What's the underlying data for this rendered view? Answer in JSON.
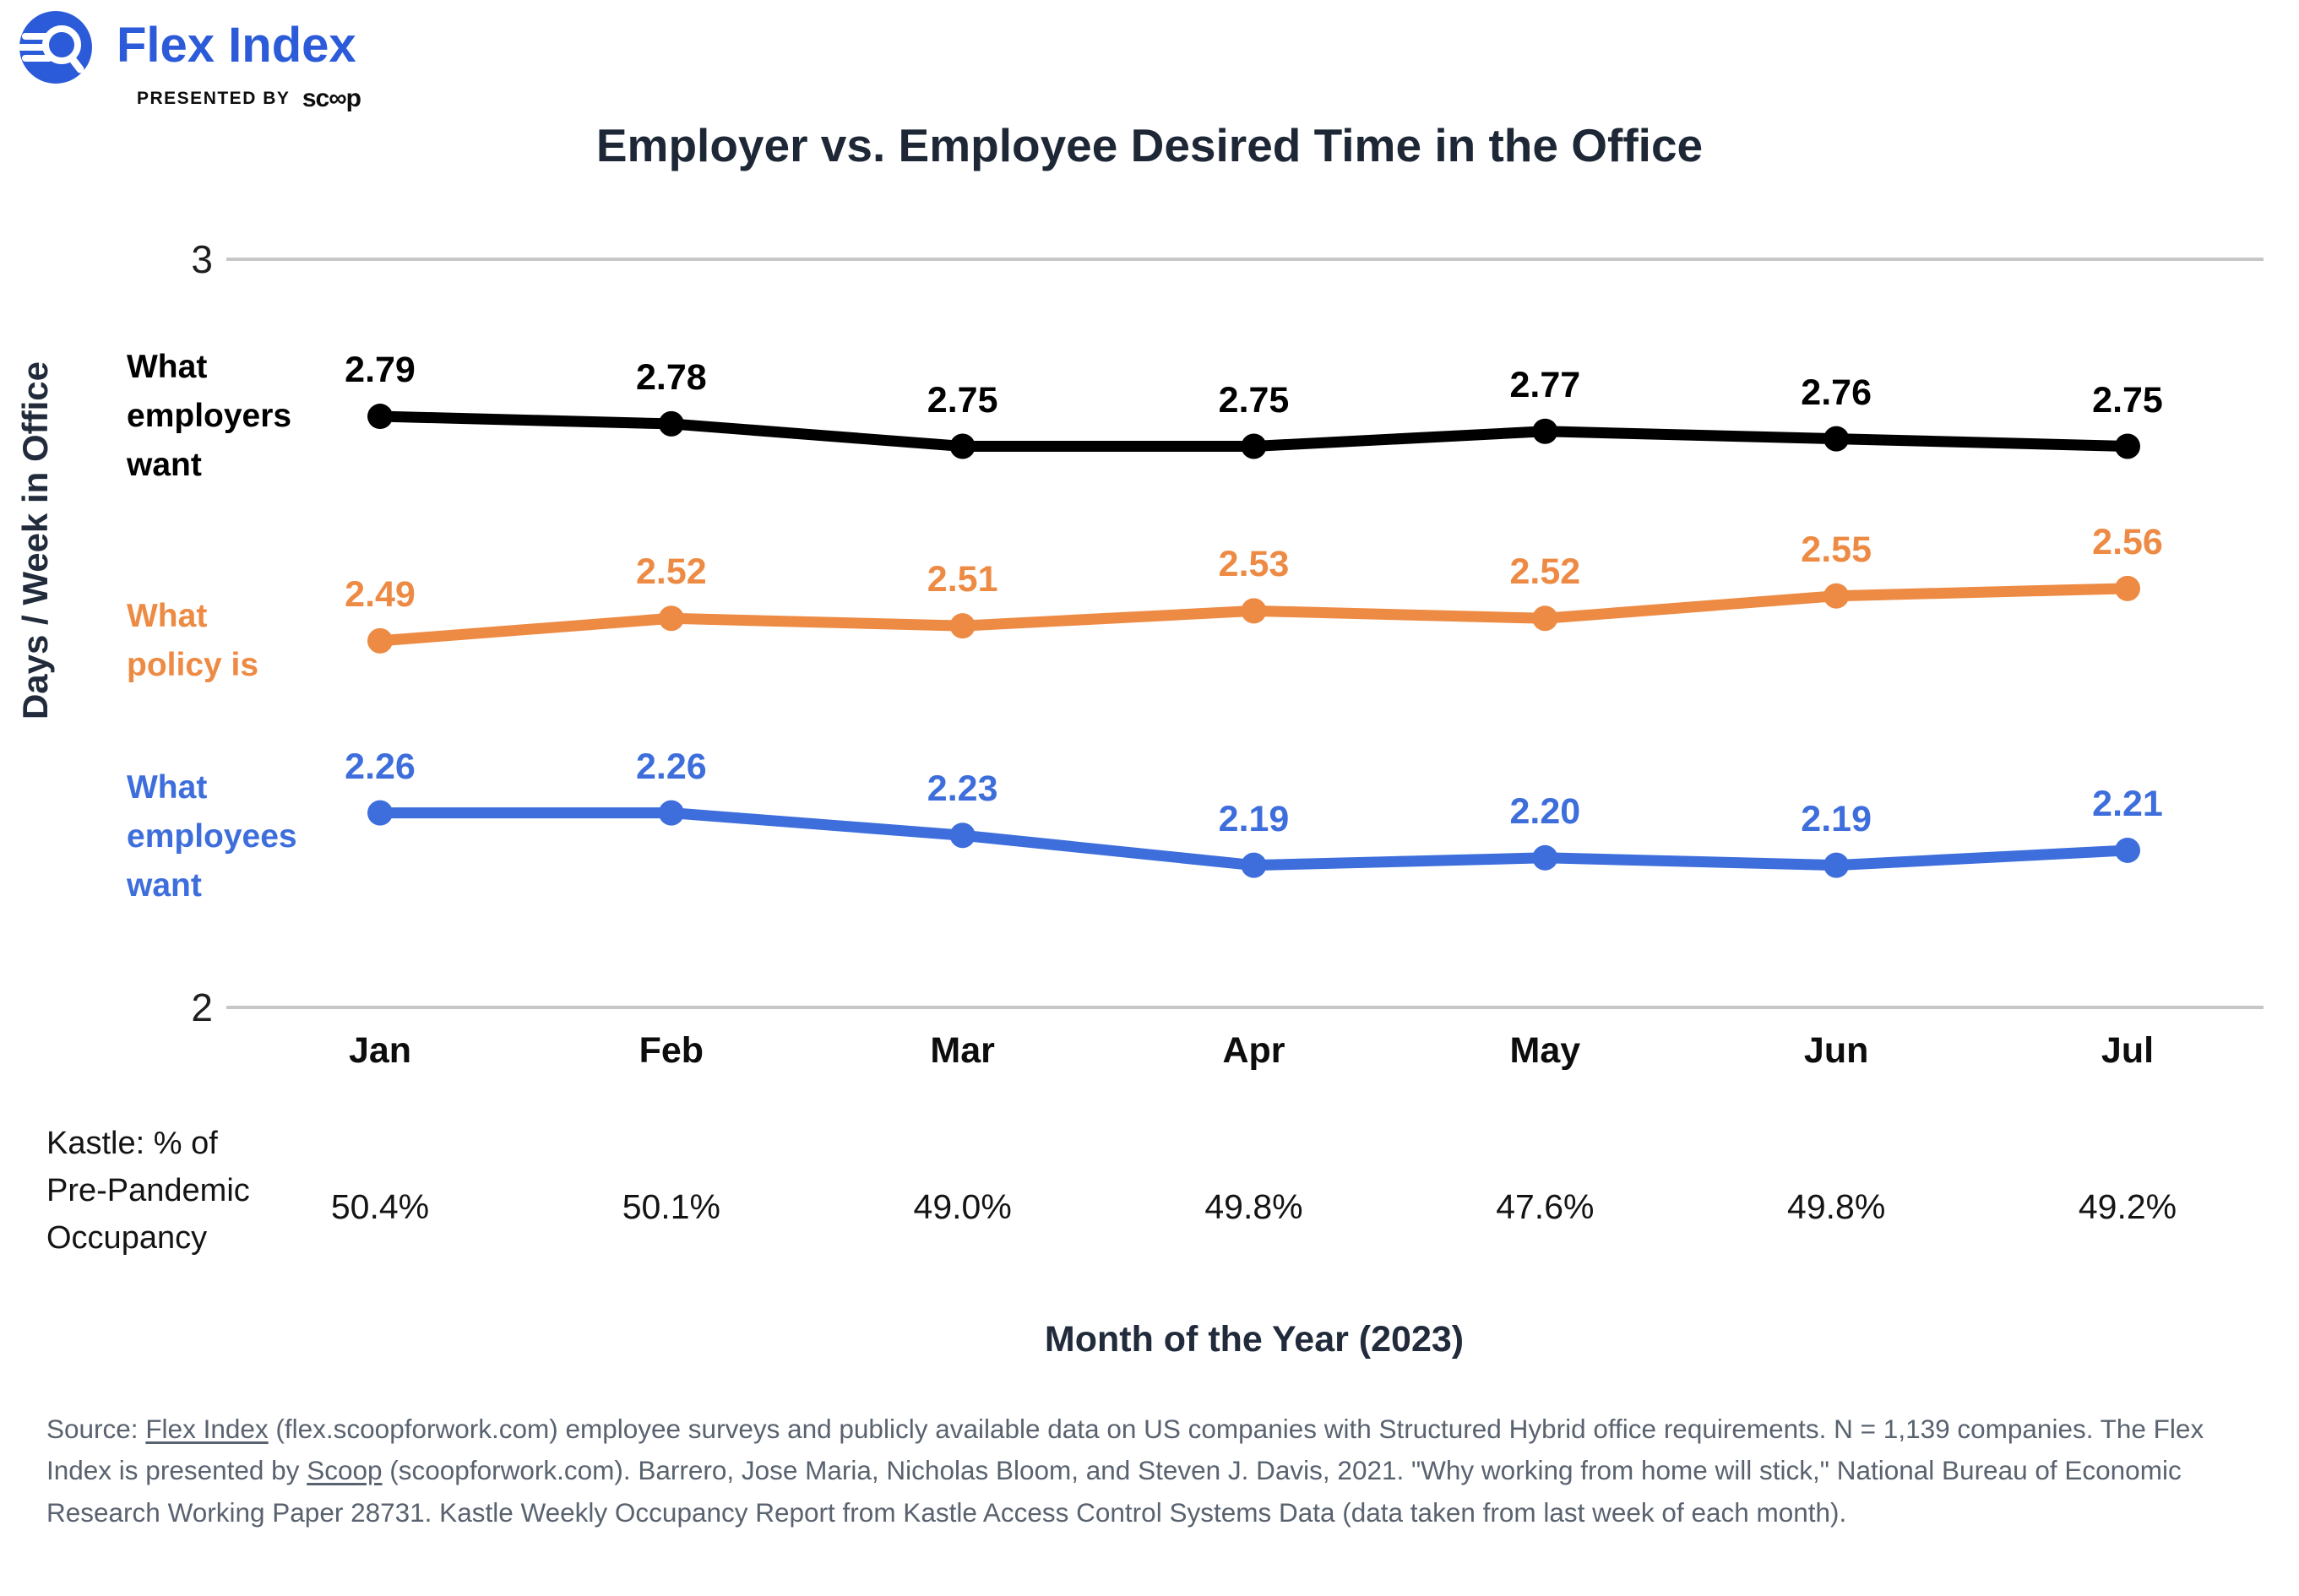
{
  "header": {
    "brand": "Flex Index",
    "presented_by": "PRESENTED BY",
    "scoop_wordmark": "sc∞p",
    "brand_color": "#2C5BD9"
  },
  "chart_data": {
    "type": "line",
    "title": "Employer vs. Employee Desired Time in the Office",
    "xlabel": "Month of the Year (2023)",
    "ylabel": "Days / Week in Office",
    "ylim": [
      2,
      3
    ],
    "yticks": [
      3,
      2
    ],
    "grid": "horizontal-ticks-only",
    "legend_position": "left-inline",
    "categories": [
      "Jan",
      "Feb",
      "Mar",
      "Apr",
      "May",
      "Jun",
      "Jul"
    ],
    "series": [
      {
        "name": "What employers want",
        "label_lines": [
          "What",
          "employers",
          "want"
        ],
        "color": "#000000",
        "values": [
          2.79,
          2.78,
          2.75,
          2.75,
          2.77,
          2.76,
          2.75
        ]
      },
      {
        "name": "What policy is",
        "label_lines": [
          "What",
          "policy is"
        ],
        "color": "#ED8B45",
        "values": [
          2.49,
          2.52,
          2.51,
          2.53,
          2.52,
          2.55,
          2.56
        ]
      },
      {
        "name": "What employees want",
        "label_lines": [
          "What",
          "employees",
          "want"
        ],
        "color": "#3D6EDB",
        "values": [
          2.26,
          2.26,
          2.23,
          2.19,
          2.2,
          2.19,
          2.21
        ]
      }
    ],
    "annotation_row": {
      "label_lines": [
        "Kastle: % of",
        "Pre-Pandemic",
        "Occupancy"
      ],
      "values": [
        "50.4%",
        "50.1%",
        "49.0%",
        "49.8%",
        "47.6%",
        "49.8%",
        "49.2%"
      ]
    }
  },
  "footnote": {
    "parts": [
      {
        "text": "Source: "
      },
      {
        "text": "Flex Index",
        "underline": true
      },
      {
        "text": " (flex.scoopforwork.com) employee surveys and publicly available data on US companies with Structured Hybrid office requirements. N = 1,139 companies. The Flex Index is presented by "
      },
      {
        "text": "Scoop",
        "underline": true
      },
      {
        "text": " (scoopforwork.com). Barrero, Jose Maria, Nicholas Bloom, and Steven J. Davis, 2021. \"Why working from home will stick,\" National Bureau of Economic Research Working Paper 28731. Kastle Weekly Occupancy Report from Kastle Access Control Systems Data (data taken from last week of each month)."
      }
    ]
  }
}
